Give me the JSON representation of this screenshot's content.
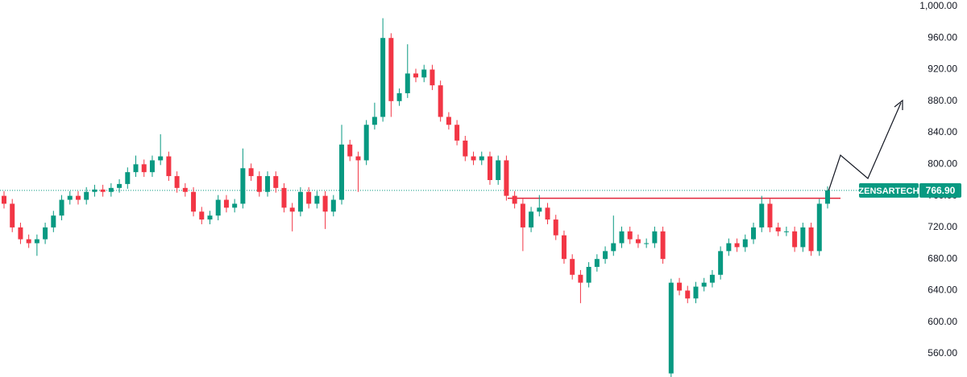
{
  "chart_data": {
    "type": "candlestick",
    "symbol": "ZENSARTECH",
    "last_price": {
      "value": 766.9,
      "label": "766.90"
    },
    "resistance": 757,
    "up_color": "#089981",
    "down_color": "#f23645",
    "ylim": [
      530.5,
      1008.1
    ],
    "yticks": [
      {
        "value": 560,
        "label": "560.00"
      },
      {
        "value": 600,
        "label": "600.00"
      },
      {
        "value": 640,
        "label": "640.00"
      },
      {
        "value": 680,
        "label": "680.00"
      },
      {
        "value": 720,
        "label": "720.00"
      },
      {
        "value": 760,
        "label": "760.00"
      },
      {
        "value": 800,
        "label": "800.00"
      },
      {
        "value": 840,
        "label": "840.00"
      },
      {
        "value": 880,
        "label": "880.00"
      },
      {
        "value": 920,
        "label": "920.00"
      },
      {
        "value": 960,
        "label": "960.00"
      },
      {
        "value": 1000,
        "label": "1,000.00"
      }
    ],
    "open": [
      760,
      750,
      720,
      705,
      700,
      705,
      720,
      735,
      755,
      760,
      755,
      765,
      768,
      765,
      770,
      775,
      790,
      800,
      790,
      805,
      810,
      785,
      770,
      765,
      740,
      730,
      735,
      755,
      745,
      750,
      795,
      785,
      765,
      785,
      770,
      745,
      740,
      765,
      750,
      760,
      740,
      755,
      825,
      810,
      805,
      850,
      860,
      960,
      880,
      890,
      915,
      910,
      920,
      900,
      860,
      850,
      830,
      810,
      805,
      810,
      780,
      805,
      760,
      750,
      720,
      740,
      745,
      730,
      710,
      680,
      660,
      650,
      670,
      680,
      690,
      700,
      715,
      705,
      700,
      700,
      715,
      535,
      650,
      640,
      630,
      645,
      650,
      660,
      690,
      700,
      695,
      705,
      720,
      750,
      720,
      715,
      715,
      695,
      720,
      690,
      750
    ],
    "high": [
      766,
      756,
      726,
      711,
      711,
      726,
      741,
      761,
      766,
      766,
      771,
      774,
      774,
      776,
      781,
      796,
      811,
      806,
      811,
      838,
      816,
      791,
      776,
      771,
      746,
      741,
      761,
      761,
      756,
      820,
      801,
      791,
      791,
      791,
      776,
      751,
      771,
      771,
      766,
      766,
      761,
      850,
      831,
      816,
      856,
      878,
      985,
      966,
      896,
      952,
      921,
      926,
      926,
      906,
      866,
      856,
      836,
      816,
      816,
      816,
      811,
      811,
      766,
      756,
      746,
      761,
      751,
      736,
      716,
      686,
      666,
      676,
      686,
      696,
      735,
      721,
      721,
      711,
      706,
      721,
      721,
      655,
      656,
      646,
      651,
      656,
      666,
      696,
      706,
      706,
      711,
      726,
      760,
      756,
      726,
      721,
      721,
      726,
      726,
      756,
      772
    ],
    "low": [
      744,
      714,
      699,
      694,
      684,
      699,
      714,
      729,
      749,
      749,
      749,
      759,
      759,
      759,
      764,
      769,
      784,
      784,
      784,
      799,
      779,
      764,
      759,
      734,
      724,
      724,
      729,
      739,
      739,
      744,
      779,
      759,
      759,
      764,
      739,
      715,
      734,
      744,
      744,
      718,
      734,
      749,
      804,
      765,
      799,
      844,
      854,
      860,
      874,
      884,
      904,
      904,
      894,
      854,
      844,
      824,
      804,
      799,
      799,
      774,
      774,
      754,
      744,
      690,
      714,
      734,
      724,
      704,
      674,
      654,
      624,
      644,
      664,
      674,
      684,
      694,
      699,
      694,
      694,
      694,
      674,
      530,
      634,
      624,
      624,
      639,
      644,
      654,
      684,
      689,
      689,
      699,
      714,
      714,
      709,
      709,
      689,
      689,
      684,
      684,
      744
    ],
    "close": [
      750,
      720,
      705,
      700,
      705,
      720,
      735,
      755,
      760,
      755,
      765,
      768,
      765,
      770,
      775,
      790,
      800,
      790,
      805,
      810,
      785,
      770,
      765,
      740,
      730,
      735,
      755,
      745,
      750,
      795,
      785,
      765,
      785,
      770,
      745,
      740,
      765,
      750,
      760,
      740,
      755,
      825,
      810,
      805,
      850,
      860,
      960,
      880,
      890,
      915,
      910,
      920,
      900,
      860,
      850,
      830,
      810,
      805,
      810,
      780,
      805,
      760,
      750,
      720,
      740,
      745,
      730,
      710,
      680,
      660,
      650,
      670,
      680,
      690,
      700,
      715,
      705,
      700,
      700,
      715,
      680,
      650,
      640,
      630,
      645,
      650,
      660,
      690,
      700,
      695,
      705,
      720,
      750,
      720,
      715,
      715,
      695,
      720,
      690,
      750,
      766.9
    ]
  }
}
